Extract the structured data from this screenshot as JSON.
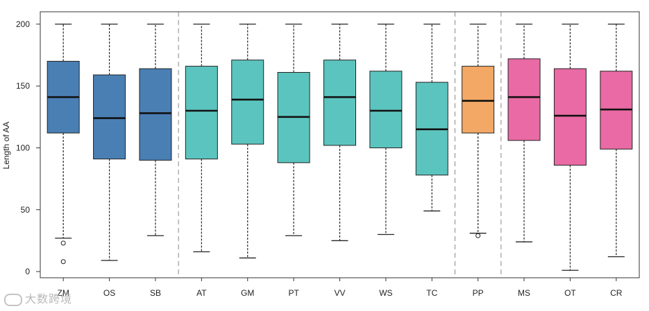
{
  "chart_data": {
    "type": "box",
    "ylabel": "Length of AA",
    "ylim": [
      -5,
      210
    ],
    "yticks": [
      0,
      50,
      100,
      150,
      200
    ],
    "grid": false,
    "group_separators_after": [
      "SB",
      "TC",
      "PP"
    ],
    "colors": {
      "blue": "#4a7fb4",
      "teal": "#5cc4be",
      "orange": "#f3a865",
      "pink": "#e96aa4"
    },
    "boxes": [
      {
        "label": "ZM",
        "color": "blue",
        "min": 27,
        "q1": 112,
        "median": 141,
        "q3": 170,
        "max": 200,
        "outliers": [
          23,
          8
        ]
      },
      {
        "label": "OS",
        "color": "blue",
        "min": 9,
        "q1": 91,
        "median": 124,
        "q3": 159,
        "max": 200,
        "outliers": []
      },
      {
        "label": "SB",
        "color": "blue",
        "min": 29,
        "q1": 90,
        "median": 128,
        "q3": 164,
        "max": 200,
        "outliers": []
      },
      {
        "label": "AT",
        "color": "teal",
        "min": 16,
        "q1": 91,
        "median": 130,
        "q3": 166,
        "max": 200,
        "outliers": []
      },
      {
        "label": "GM",
        "color": "teal",
        "min": 11,
        "q1": 103,
        "median": 139,
        "q3": 171,
        "max": 200,
        "outliers": []
      },
      {
        "label": "PT",
        "color": "teal",
        "min": 29,
        "q1": 88,
        "median": 125,
        "q3": 161,
        "max": 200,
        "outliers": []
      },
      {
        "label": "VV",
        "color": "teal",
        "min": 25,
        "q1": 102,
        "median": 141,
        "q3": 171,
        "max": 200,
        "outliers": []
      },
      {
        "label": "WS",
        "color": "teal",
        "min": 30,
        "q1": 100,
        "median": 130,
        "q3": 162,
        "max": 200,
        "outliers": []
      },
      {
        "label": "TC",
        "color": "teal",
        "min": 49,
        "q1": 78,
        "median": 115,
        "q3": 153,
        "max": 200,
        "outliers": []
      },
      {
        "label": "PP",
        "color": "orange",
        "min": 31,
        "q1": 112,
        "median": 138,
        "q3": 166,
        "max": 200,
        "outliers": [
          29
        ]
      },
      {
        "label": "MS",
        "color": "pink",
        "min": 24,
        "q1": 106,
        "median": 141,
        "q3": 172,
        "max": 200,
        "outliers": []
      },
      {
        "label": "OT",
        "color": "pink",
        "min": 1,
        "q1": 86,
        "median": 126,
        "q3": 164,
        "max": 200,
        "outliers": []
      },
      {
        "label": "CR",
        "color": "pink",
        "min": 12,
        "q1": 99,
        "median": 131,
        "q3": 162,
        "max": 200,
        "outliers": []
      }
    ]
  },
  "watermark": {
    "text": "大数跨境"
  }
}
